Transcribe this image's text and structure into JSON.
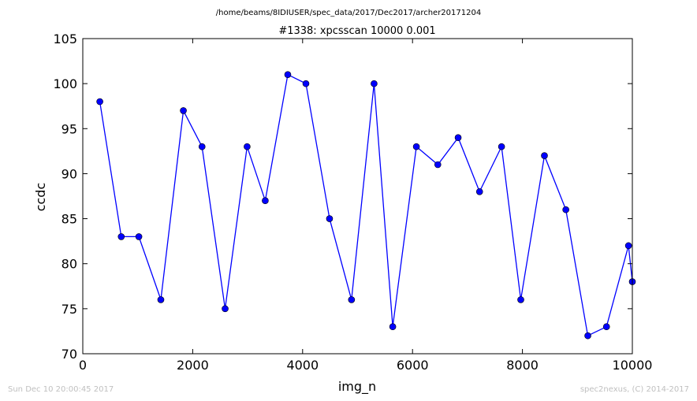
{
  "chart_data": {
    "type": "line",
    "suptitle": "/home/beams/8IDIUSER/spec_data/2017/Dec2017/archer20171204",
    "title": "#1338: xpcsscan 10000 0.001",
    "xlabel": "img_n",
    "ylabel": "ccdc",
    "xlim": [
      0,
      10000
    ],
    "ylim": [
      70,
      105
    ],
    "xticks": [
      0,
      2000,
      4000,
      6000,
      8000,
      10000
    ],
    "yticks": [
      70,
      75,
      80,
      85,
      90,
      95,
      100,
      105
    ],
    "grid": false,
    "series": [
      {
        "color": "#0000ff",
        "marker": "circle",
        "x": [
          310,
          700,
          1020,
          1420,
          1830,
          2170,
          2590,
          2990,
          3320,
          3730,
          4060,
          4490,
          4890,
          5300,
          5640,
          6070,
          6460,
          6830,
          7220,
          7620,
          7970,
          8400,
          8790,
          9190,
          9530,
          9930,
          10000
        ],
        "y": [
          98,
          83,
          83,
          76,
          97,
          93,
          75,
          93,
          87,
          101,
          100,
          85,
          76,
          100,
          73,
          93,
          91,
          94,
          88,
          93,
          76,
          92,
          86,
          72,
          73,
          82,
          78
        ]
      }
    ]
  },
  "footer": {
    "timestamp": "Sun Dec 10 20:00:45 2017",
    "credit": "spec2nexus, (C) 2014-2017"
  }
}
